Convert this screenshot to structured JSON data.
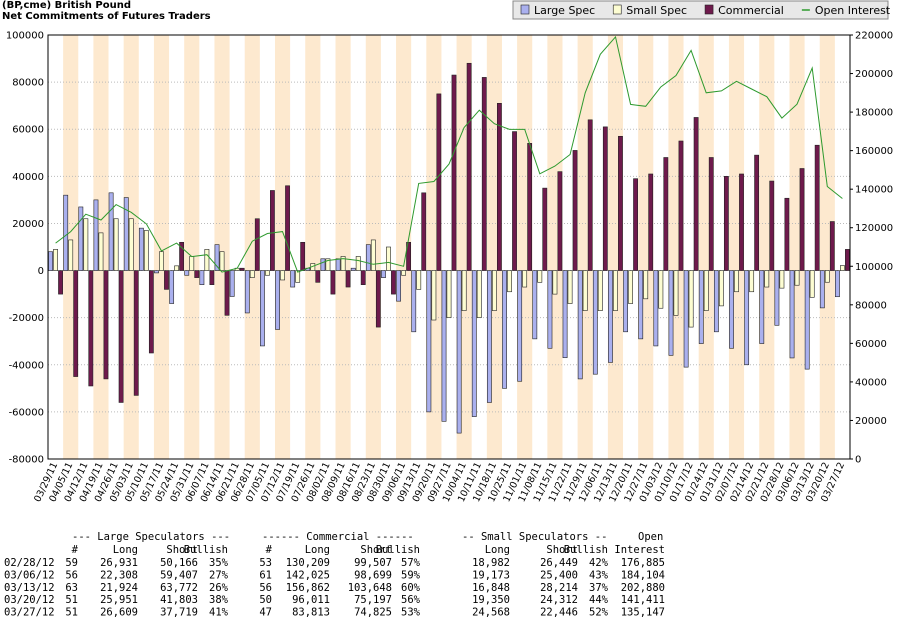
{
  "chart_data": {
    "type": "bar",
    "title": "(BP,cme) British Pound",
    "subtitle": "Net Commitments of Futures Traders",
    "categories": [
      "03/29/11",
      "04/05/11",
      "04/12/11",
      "04/19/11",
      "04/26/11",
      "05/03/11",
      "05/10/11",
      "05/17/11",
      "05/24/11",
      "05/31/11",
      "06/07/11",
      "06/14/11",
      "06/21/11",
      "06/28/11",
      "07/05/11",
      "07/12/11",
      "07/19/11",
      "07/26/11",
      "08/02/11",
      "08/09/11",
      "08/16/11",
      "08/23/11",
      "08/30/11",
      "09/06/11",
      "09/13/11",
      "09/20/11",
      "09/27/11",
      "10/04/11",
      "10/11/11",
      "10/18/11",
      "10/25/11",
      "11/01/11",
      "11/08/11",
      "11/15/11",
      "11/22/11",
      "11/29/11",
      "12/06/11",
      "12/13/11",
      "12/20/11",
      "12/27/11",
      "01/03/12",
      "01/10/12",
      "01/17/12",
      "01/24/12",
      "01/31/12",
      "02/07/12",
      "02/14/12",
      "02/21/12",
      "02/28/12",
      "03/06/12",
      "03/13/12",
      "03/20/12",
      "03/27/12"
    ],
    "series": [
      {
        "name": "Large Spec",
        "color": "#aab0ee",
        "values": [
          8000,
          32000,
          27000,
          30000,
          33000,
          31000,
          18000,
          -1000,
          -14000,
          -2000,
          -6000,
          11000,
          -11000,
          -18000,
          -32000,
          -25000,
          -7000,
          1000,
          5000,
          5000,
          1000,
          11000,
          -3000,
          -13000,
          -26000,
          -60000,
          -64000,
          -69000,
          -62000,
          -56000,
          -50000,
          -47000,
          -29000,
          -33000,
          -37000,
          -46000,
          -44000,
          -39000,
          -26000,
          -29000,
          -32000,
          -36000,
          -41000,
          -31000,
          -26000,
          -33000,
          -40000,
          -31000,
          -23235,
          -37099,
          -41848,
          -15852,
          -11110
        ]
      },
      {
        "name": "Small Spec",
        "color": "#fdfdd2",
        "values": [
          9000,
          13000,
          22000,
          16000,
          22000,
          22000,
          17000,
          8000,
          2000,
          6000,
          9000,
          8000,
          1000,
          -3000,
          -2000,
          -4000,
          -5000,
          3000,
          5000,
          6000,
          6000,
          13000,
          10000,
          -2000,
          -8000,
          -21000,
          -20000,
          -17000,
          -20000,
          -17000,
          -9000,
          -7000,
          -5000,
          -10000,
          -14000,
          -17000,
          -17000,
          -17000,
          -14000,
          -12000,
          -16000,
          -19000,
          -24000,
          -17000,
          -15000,
          -9000,
          -9000,
          -7000,
          -7467,
          -6227,
          -11366,
          -4962,
          2122
        ]
      },
      {
        "name": "Commercial",
        "color": "#6e1a4c",
        "values": [
          -10000,
          -45000,
          -49000,
          -46000,
          -56000,
          -53000,
          -35000,
          -8000,
          12000,
          -3000,
          -6000,
          -19000,
          1000,
          22000,
          34000,
          36000,
          12000,
          -5000,
          -10000,
          -7000,
          -6000,
          -24000,
          -10000,
          12000,
          33000,
          75000,
          83000,
          88000,
          82000,
          71000,
          59000,
          54000,
          35000,
          42000,
          51000,
          64000,
          61000,
          57000,
          39000,
          41000,
          48000,
          55000,
          65000,
          48000,
          40000,
          41000,
          49000,
          38000,
          30702,
          43326,
          53214,
          20814,
          8988
        ]
      },
      {
        "name": "Open Interest",
        "color": "#2e9a2e",
        "type": "line",
        "axis": "y2",
        "values": [
          112000,
          118000,
          127000,
          124000,
          132000,
          128000,
          122000,
          108000,
          112000,
          105000,
          106000,
          97000,
          99000,
          113000,
          117000,
          118000,
          97000,
          100000,
          103000,
          104000,
          103000,
          101000,
          102000,
          100000,
          143000,
          144000,
          153000,
          172000,
          181000,
          174000,
          171000,
          171000,
          148000,
          152000,
          158000,
          190000,
          210000,
          219000,
          184000,
          183000,
          193000,
          199000,
          212000,
          190000,
          191000,
          196000,
          192000,
          188000,
          176885,
          184104,
          202880,
          141411,
          135147
        ]
      }
    ],
    "ylim": [
      -80000,
      100000
    ],
    "yticks": [
      -80000,
      -60000,
      -40000,
      -20000,
      0,
      20000,
      40000,
      60000,
      80000,
      100000
    ],
    "y2lim": [
      0,
      220000
    ],
    "y2ticks": [
      0,
      20000,
      40000,
      60000,
      80000,
      100000,
      120000,
      140000,
      160000,
      180000,
      200000,
      220000
    ],
    "grid": true,
    "legend": "top-right"
  },
  "table": {
    "group_headers": [
      "--- Large Speculators ---",
      "------ Commercial ------",
      "-- Small Speculators --",
      "Open"
    ],
    "columns": [
      "#",
      "Long",
      "Short",
      "Bullish",
      "#",
      "Long",
      "Short",
      "Bullish",
      "Long",
      "Short",
      "Bullish",
      "Interest"
    ],
    "rows": [
      [
        "02/28/12",
        "59",
        "26,931",
        "50,166",
        "35%",
        "53",
        "130,209",
        "99,507",
        "57%",
        "18,982",
        "26,449",
        "42%",
        "176,885"
      ],
      [
        "03/06/12",
        "56",
        "22,308",
        "59,407",
        "27%",
        "61",
        "142,025",
        "98,699",
        "59%",
        "19,173",
        "25,400",
        "43%",
        "184,104"
      ],
      [
        "03/13/12",
        "63",
        "21,924",
        "63,772",
        "26%",
        "56",
        "156,862",
        "103,648",
        "60%",
        "16,848",
        "28,214",
        "37%",
        "202,880"
      ],
      [
        "03/20/12",
        "51",
        "25,951",
        "41,803",
        "38%",
        "50",
        "96,011",
        "75,197",
        "56%",
        "19,350",
        "24,312",
        "44%",
        "141,411"
      ],
      [
        "03/27/12",
        "51",
        "26,609",
        "37,719",
        "41%",
        "47",
        "83,813",
        "74,825",
        "53%",
        "24,568",
        "22,446",
        "52%",
        "135,147"
      ]
    ]
  }
}
